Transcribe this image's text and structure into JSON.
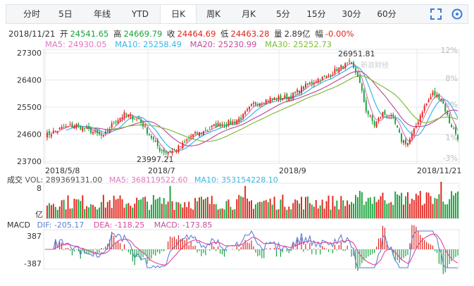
{
  "tabs": [
    {
      "label": "分时"
    },
    {
      "label": "5日"
    },
    {
      "label": "年线"
    },
    {
      "label": "YTD"
    },
    {
      "label": "日K",
      "active": true
    },
    {
      "label": "周K"
    },
    {
      "label": "月K"
    },
    {
      "label": "5分"
    },
    {
      "label": "15分"
    },
    {
      "label": "30分"
    },
    {
      "label": "60分"
    }
  ],
  "info": {
    "date": "2018/11/21",
    "open_label": "开",
    "open": "24541.65",
    "high_label": "高",
    "high": "24669.79",
    "close_label": "收",
    "close": "24464.69",
    "low_label": "低",
    "low": "24463.28",
    "vol_label": "量",
    "vol": "2.89亿",
    "chg_label": "幅",
    "chg": "-0.00%"
  },
  "ma_legend": {
    "ma5": "MA5: 24930.05",
    "ma10": "MA10: 25258.49",
    "ma20": "MA20: 25230.99",
    "ma30": "MA30: 25252.73"
  },
  "colors": {
    "up": "#e2231a",
    "down": "#18a33a",
    "ma5": "#e377c2",
    "ma10": "#38b6e6",
    "ma20": "#7ebd3a",
    "ma30": "#9acd32",
    "dif": "#5b7fd6",
    "dea": "#e0449c",
    "grid": "#e6e9ed"
  },
  "watermark": "新浪财经",
  "chart_data": {
    "type": "candlestick",
    "price_axis": {
      "ticks": [
        "27300",
        "26400",
        "25500",
        "24600",
        "23700"
      ],
      "ylim": [
        23700,
        27300
      ]
    },
    "pct_axis": {
      "ticks": [
        "12%",
        "8%",
        "3%",
        "1%",
        "-3%"
      ]
    },
    "date_ticks": [
      "2018/5/8",
      "2018/7",
      "2018/9",
      "2018/11/21"
    ],
    "annotations": {
      "max": "26951.81",
      "min": "23997.21"
    },
    "volume": {
      "label": "成交",
      "text": "VOL: 289369131.00",
      "ma5": "MA5: 368119522.60",
      "ma10": "MA10: 353154228.10",
      "top_tick": "8",
      "bottom_tick": "亿"
    },
    "macd": {
      "label": "MACD",
      "dif": "DIF: -205.17",
      "dea": "DEA: -118.25",
      "macd": "MACD: -173.85",
      "top_tick": "387",
      "bottom_tick": "-387"
    },
    "anchors": [
      [
        0,
        24550
      ],
      [
        8,
        24800
      ],
      [
        15,
        24900
      ],
      [
        22,
        24700
      ],
      [
        28,
        24500
      ],
      [
        33,
        25000
      ],
      [
        38,
        25250
      ],
      [
        45,
        25100
      ],
      [
        50,
        24600
      ],
      [
        55,
        24100
      ],
      [
        58,
        24000
      ],
      [
        62,
        24050
      ],
      [
        66,
        24250
      ],
      [
        70,
        24550
      ],
      [
        75,
        24650
      ],
      [
        82,
        24900
      ],
      [
        90,
        25000
      ],
      [
        95,
        25200
      ],
      [
        100,
        25600
      ],
      [
        107,
        25750
      ],
      [
        113,
        25800
      ],
      [
        118,
        25850
      ],
      [
        124,
        26150
      ],
      [
        130,
        26400
      ],
      [
        135,
        26500
      ],
      [
        140,
        26750
      ],
      [
        146,
        26950
      ],
      [
        150,
        26550
      ],
      [
        154,
        25400
      ],
      [
        158,
        24900
      ],
      [
        162,
        25300
      ],
      [
        167,
        25100
      ],
      [
        171,
        24400
      ],
      [
        174,
        24300
      ],
      [
        177,
        24700
      ],
      [
        181,
        25400
      ],
      [
        186,
        25950
      ],
      [
        190,
        25800
      ],
      [
        194,
        25000
      ],
      [
        198,
        24500
      ]
    ]
  }
}
